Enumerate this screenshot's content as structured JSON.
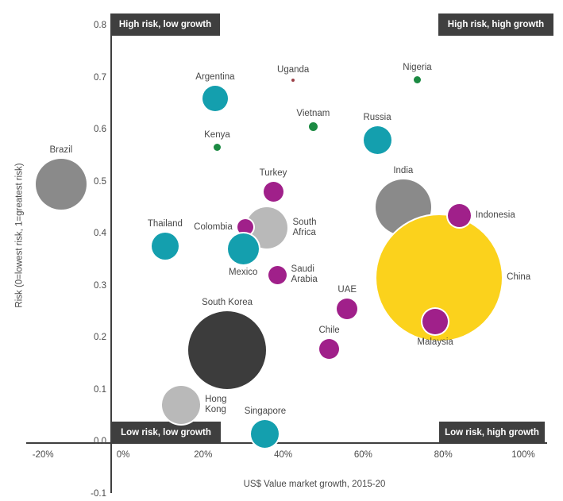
{
  "chart_data": {
    "type": "scatter",
    "subtype": "bubble",
    "title": "",
    "xlabel": "US$ Value market growth, 2015-20",
    "ylabel": "Risk (0=lowest risk, 1=greatest risk)",
    "xlim": [
      -20,
      100
    ],
    "ylim": [
      -0.1,
      0.8
    ],
    "grid": false,
    "x_ticks": [
      "-20%",
      "0%",
      "20%",
      "40%",
      "60%",
      "80%",
      "100%"
    ],
    "x_tick_values": [
      -20,
      0,
      20,
      40,
      60,
      80,
      100
    ],
    "y_ticks": [
      "0.8",
      "0.7",
      "0.6",
      "0.5",
      "0.4",
      "0.3",
      "0.2",
      "0.1",
      "0.0",
      "-0.1"
    ],
    "y_tick_values": [
      0.8,
      0.7,
      0.6,
      0.5,
      0.4,
      0.3,
      0.2,
      0.1,
      0.0,
      -0.1
    ],
    "quadrant_labels": {
      "top_left": "High risk, low growth",
      "top_right": "High risk, high growth",
      "bottom_left": "Low risk, low growth",
      "bottom_right": "Low risk, high growth"
    },
    "colors": {
      "teal": "#149fae",
      "magenta": "#a0208a",
      "green": "#1b8a42",
      "gray": "#8a8a8a",
      "light_gray": "#b9b9b9",
      "charcoal": "#3c3c3c",
      "yellow": "#fbd21c",
      "maroon": "#9c4048"
    },
    "points": [
      {
        "label": "Brazil",
        "growth_pct": -15.5,
        "risk": 0.495,
        "r": 32,
        "color": "gray",
        "label_pos": "above"
      },
      {
        "label": "Argentina",
        "growth_pct": 23,
        "risk": 0.66,
        "r": 16,
        "color": "teal",
        "label_pos": "above"
      },
      {
        "label": "Kenya",
        "growth_pct": 23.5,
        "risk": 0.565,
        "r": 4.5,
        "color": "green",
        "label_pos": "above"
      },
      {
        "label": "Uganda",
        "growth_pct": 42.5,
        "risk": 0.695,
        "r": 2,
        "color": "maroon",
        "label_pos": "above"
      },
      {
        "label": "Nigeria",
        "growth_pct": 73.5,
        "risk": 0.695,
        "r": 4.5,
        "color": "green",
        "label_pos": "above"
      },
      {
        "label": "Vietnam",
        "growth_pct": 47.5,
        "risk": 0.605,
        "r": 5.5,
        "color": "green",
        "label_pos": "above"
      },
      {
        "label": "Russia",
        "growth_pct": 63.5,
        "risk": 0.58,
        "r": 17.5,
        "color": "teal",
        "label_pos": "above"
      },
      {
        "label": "Turkey",
        "growth_pct": 37.5,
        "risk": 0.48,
        "r": 12.5,
        "color": "magenta",
        "label_pos": "above"
      },
      {
        "label": "Thailand",
        "growth_pct": 10.5,
        "risk": 0.375,
        "r": 17,
        "color": "teal",
        "label_pos": "above"
      },
      {
        "label": "South Africa",
        "growth_pct": 36,
        "risk": 0.41,
        "r": 26,
        "color": "light_gray",
        "label_pos": "right",
        "label_lines": [
          "South",
          "Africa"
        ]
      },
      {
        "label": "Colombia",
        "growth_pct": 30.5,
        "risk": 0.412,
        "r": 10,
        "color": "magenta",
        "label_pos": "left"
      },
      {
        "label": "Mexico",
        "growth_pct": 30,
        "risk": 0.37,
        "r": 19.5,
        "color": "teal",
        "label_pos": "below"
      },
      {
        "label": "Saudi Arabia",
        "growth_pct": 38.5,
        "risk": 0.32,
        "r": 11.5,
        "color": "magenta",
        "label_pos": "right",
        "label_lines": [
          "Saudi",
          "Arabia"
        ]
      },
      {
        "label": "India",
        "growth_pct": 70,
        "risk": 0.45,
        "r": 35,
        "color": "gray",
        "label_pos": "above"
      },
      {
        "label": "China",
        "growth_pct": 79,
        "risk": 0.315,
        "r": 79,
        "color": "yellow",
        "label_pos": "right"
      },
      {
        "label": "Indonesia",
        "growth_pct": 84,
        "risk": 0.435,
        "r": 14.5,
        "color": "magenta",
        "label_pos": "right"
      },
      {
        "label": "Malaysia",
        "growth_pct": 78,
        "risk": 0.23,
        "r": 16,
        "color": "magenta",
        "label_pos": "below"
      },
      {
        "label": "UAE",
        "growth_pct": 56,
        "risk": 0.255,
        "r": 13,
        "color": "magenta",
        "label_pos": "above"
      },
      {
        "label": "Chile",
        "growth_pct": 51.5,
        "risk": 0.178,
        "r": 12.5,
        "color": "magenta",
        "label_pos": "above"
      },
      {
        "label": "South Korea",
        "growth_pct": 26,
        "risk": 0.175,
        "r": 49,
        "color": "charcoal",
        "label_pos": "above"
      },
      {
        "label": "Hong Kong",
        "growth_pct": 14.5,
        "risk": 0.07,
        "r": 24,
        "color": "light_gray",
        "label_pos": "right",
        "label_lines": [
          "Hong",
          "Kong"
        ]
      },
      {
        "label": "Singapore",
        "growth_pct": 35.5,
        "risk": 0.015,
        "r": 17.5,
        "color": "teal",
        "label_pos": "above"
      }
    ]
  }
}
